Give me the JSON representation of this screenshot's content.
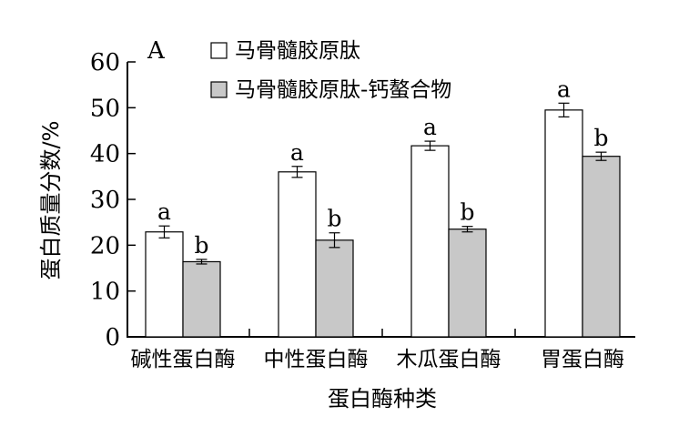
{
  "chart_data": {
    "type": "bar",
    "panel_label": "A",
    "title": "",
    "xlabel": "蛋白酶种类",
    "ylabel": "蛋白质量分数/%",
    "ylim": [
      0,
      60
    ],
    "yticks": [
      0,
      10,
      20,
      30,
      40,
      50,
      60
    ],
    "categories": [
      "碱性蛋白酶",
      "中性蛋白酶",
      "木瓜蛋白酶",
      "胃蛋白酶"
    ],
    "series": [
      {
        "name": "马骨髓胶原肽",
        "color": "#ffffff",
        "values": [
          22.9,
          36.0,
          41.7,
          49.5
        ],
        "errors": [
          1.3,
          1.2,
          1.0,
          1.5
        ],
        "labels": [
          "a",
          "a",
          "a",
          "a"
        ]
      },
      {
        "name": "马骨髓胶原肽-钙螯合物",
        "color": "#c8c8c8",
        "values": [
          16.4,
          21.1,
          23.5,
          39.4
        ],
        "errors": [
          0.5,
          1.6,
          0.6,
          0.9
        ],
        "labels": [
          "b",
          "b",
          "b",
          "b"
        ]
      }
    ],
    "legend_position": "top-left",
    "grid": false
  }
}
